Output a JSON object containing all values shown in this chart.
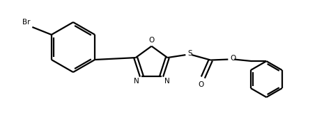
{
  "background_color": "#ffffff",
  "line_color": "#000000",
  "line_width": 1.6,
  "figsize": [
    4.65,
    1.83
  ],
  "dpi": 100,
  "xlim": [
    0.0,
    9.3
  ],
  "ylim": [
    0.0,
    3.66
  ]
}
